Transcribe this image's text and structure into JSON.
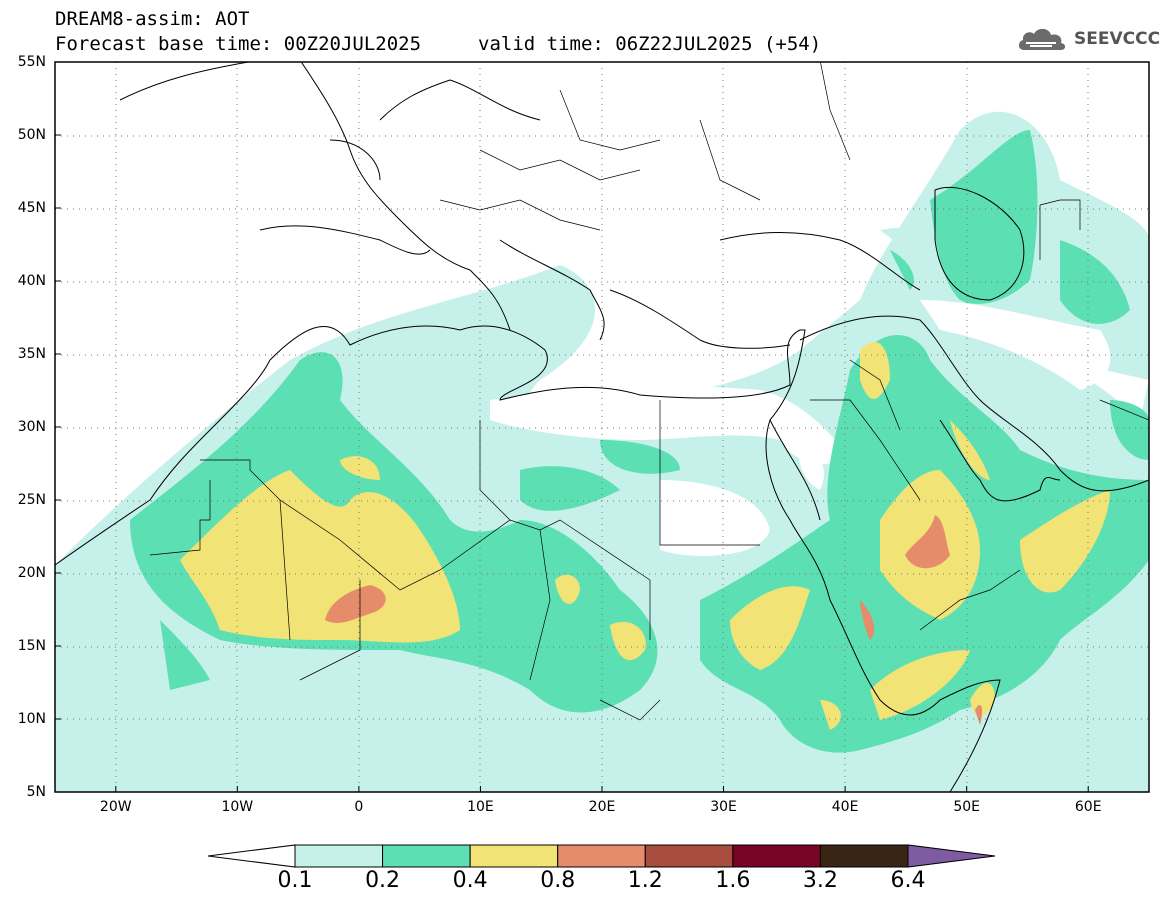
{
  "header": {
    "model_title": "DREAM8-assim: AOT",
    "base_time": "Forecast base time: 00Z20JUL2025",
    "valid_time": "valid time: 06Z22JUL2025 (+54)"
  },
  "logo": {
    "text": "SEEVCCC"
  },
  "map": {
    "lon_range": [
      -25,
      65
    ],
    "lat_range": [
      5,
      55
    ],
    "lat_ticks": [
      {
        "value": 55,
        "label": "55N"
      },
      {
        "value": 50,
        "label": "50N"
      },
      {
        "value": 45,
        "label": "45N"
      },
      {
        "value": 40,
        "label": "40N"
      },
      {
        "value": 35,
        "label": "35N"
      },
      {
        "value": 30,
        "label": "30N"
      },
      {
        "value": 25,
        "label": "25N"
      },
      {
        "value": 20,
        "label": "20N"
      },
      {
        "value": 15,
        "label": "15N"
      },
      {
        "value": 10,
        "label": "10N"
      },
      {
        "value": 5,
        "label": "5N"
      }
    ],
    "lon_ticks": [
      {
        "value": -20,
        "label": "20W"
      },
      {
        "value": -10,
        "label": "10W"
      },
      {
        "value": 0,
        "label": "0"
      },
      {
        "value": 10,
        "label": "10E"
      },
      {
        "value": 20,
        "label": "20E"
      },
      {
        "value": 30,
        "label": "30E"
      },
      {
        "value": 40,
        "label": "40E"
      },
      {
        "value": 50,
        "label": "50E"
      },
      {
        "value": 60,
        "label": "60E"
      }
    ]
  },
  "colorbar": {
    "labels": [
      "0.1",
      "0.2",
      "0.4",
      "0.8",
      "1.2",
      "1.6",
      "3.2",
      "6.4"
    ],
    "colors": [
      "#ffffff",
      "#c6f1ea",
      "#5ddfb4",
      "#f2e376",
      "#e58c6a",
      "#a84c40",
      "#7a0424",
      "#3a2414",
      "#7e5ba3"
    ]
  }
}
